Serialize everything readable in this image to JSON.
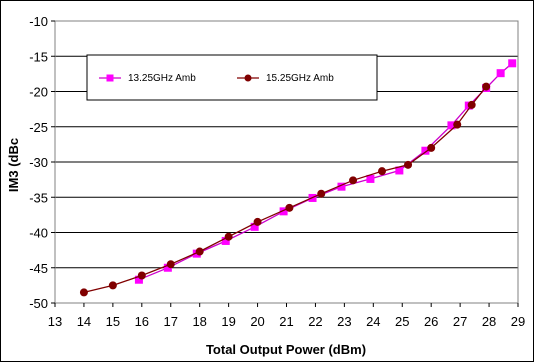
{
  "chart_data": {
    "type": "line",
    "xlabel": "Total Output Power (dBm)",
    "ylabel": "IM3 (dBc",
    "xlim": [
      13,
      29
    ],
    "ylim": [
      -50,
      -10
    ],
    "x_ticks": [
      "13",
      "14",
      "15",
      "16",
      "17",
      "18",
      "19",
      "20",
      "21",
      "22",
      "23",
      "24",
      "25",
      "26",
      "27",
      "28",
      "29"
    ],
    "y_ticks": [
      "-10",
      "-15",
      "-20",
      "-25",
      "-30",
      "-35",
      "-40",
      "-45",
      "-50"
    ],
    "grid": "horizontal",
    "legend_position": "top-left",
    "series": [
      {
        "name": "13.25GHz Amb",
        "color": "#ff00ff",
        "line_color": "#cc00cc",
        "marker": "square",
        "points": [
          [
            15.9,
            -46.7
          ],
          [
            16.9,
            -45.0
          ],
          [
            17.9,
            -43.0
          ],
          [
            18.9,
            -41.2
          ],
          [
            19.9,
            -39.2
          ],
          [
            20.9,
            -37.0
          ],
          [
            21.9,
            -35.1
          ],
          [
            22.9,
            -33.5
          ],
          [
            23.9,
            -32.4
          ],
          [
            24.9,
            -31.2
          ],
          [
            25.8,
            -28.4
          ],
          [
            26.7,
            -24.8
          ],
          [
            27.3,
            -22.0
          ],
          [
            27.9,
            -19.5
          ],
          [
            28.4,
            -17.4
          ],
          [
            28.8,
            -16.0
          ]
        ]
      },
      {
        "name": "15.25GHz Amb",
        "color": "#800000",
        "line_color": "#800000",
        "marker": "circle",
        "points": [
          [
            14.0,
            -48.5
          ],
          [
            15.0,
            -47.5
          ],
          [
            16.0,
            -46.1
          ],
          [
            17.0,
            -44.5
          ],
          [
            18.0,
            -42.7
          ],
          [
            19.0,
            -40.6
          ],
          [
            20.0,
            -38.5
          ],
          [
            21.1,
            -36.5
          ],
          [
            22.2,
            -34.5
          ],
          [
            23.3,
            -32.6
          ],
          [
            24.3,
            -31.3
          ],
          [
            25.2,
            -30.4
          ],
          [
            26.0,
            -28.0
          ],
          [
            26.9,
            -24.7
          ],
          [
            27.4,
            -21.9
          ],
          [
            27.9,
            -19.3
          ]
        ]
      }
    ]
  }
}
